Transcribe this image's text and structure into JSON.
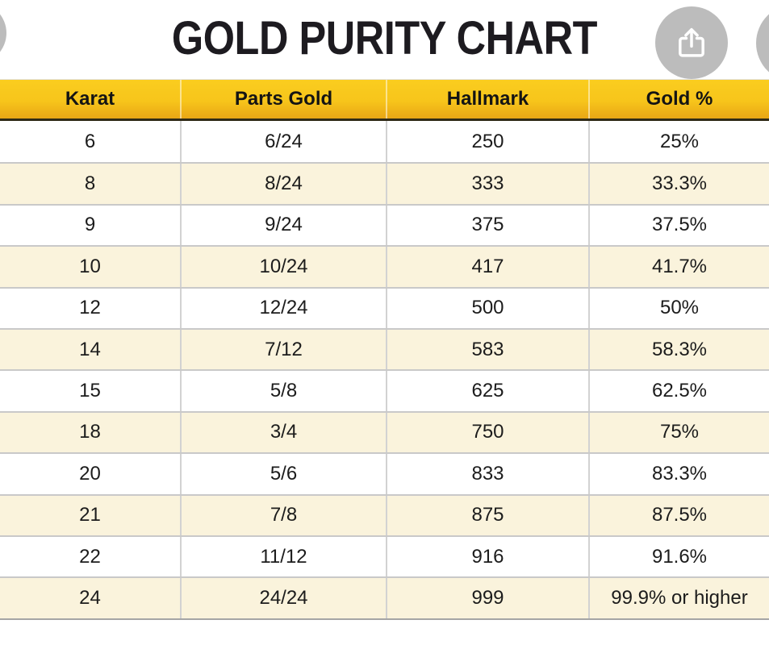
{
  "page": {
    "title": "GOLD PURITY CHART"
  },
  "toolbar": {
    "share_icon": "share-icon"
  },
  "chart_data": {
    "type": "table",
    "title": "GOLD PURITY CHART",
    "columns": [
      "Karat",
      "Parts Gold",
      "Hallmark",
      "Gold %"
    ],
    "rows": [
      [
        "6",
        "6/24",
        "250",
        "25%"
      ],
      [
        "8",
        "8/24",
        "333",
        "33.3%"
      ],
      [
        "9",
        "9/24",
        "375",
        "37.5%"
      ],
      [
        "10",
        "10/24",
        "417",
        "41.7%"
      ],
      [
        "12",
        "12/24",
        "500",
        "50%"
      ],
      [
        "14",
        "7/12",
        "583",
        "58.3%"
      ],
      [
        "15",
        "5/8",
        "625",
        "62.5%"
      ],
      [
        "18",
        "3/4",
        "750",
        "75%"
      ],
      [
        "20",
        "5/6",
        "833",
        "83.3%"
      ],
      [
        "21",
        "7/8",
        "875",
        "87.5%"
      ],
      [
        "22",
        "11/12",
        "916",
        "91.6%"
      ],
      [
        "24",
        "24/24",
        "999",
        "99.9% or higher"
      ]
    ]
  },
  "colors": {
    "header_gradient_top": "#FACD1F",
    "header_gradient_bottom": "#E9A615",
    "header_underline": "#2F2A16",
    "row_cream": "#FAF3DC",
    "row_white": "#FFFFFF",
    "grid_line": "#C9C9C9",
    "circle_gray": "#BCBCBC",
    "text_dark": "#1C1C1C"
  }
}
